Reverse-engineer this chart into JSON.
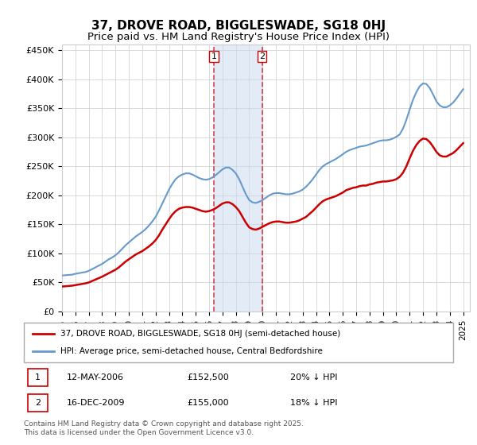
{
  "title": "37, DROVE ROAD, BIGGLESWADE, SG18 0HJ",
  "subtitle": "Price paid vs. HM Land Registry's House Price Index (HPI)",
  "title_fontsize": 11,
  "subtitle_fontsize": 9.5,
  "ylabel_ticks": [
    "£0",
    "£50K",
    "£100K",
    "£150K",
    "£200K",
    "£250K",
    "£300K",
    "£350K",
    "£400K",
    "£450K"
  ],
  "ytick_values": [
    0,
    50000,
    100000,
    150000,
    200000,
    250000,
    300000,
    350000,
    400000,
    450000
  ],
  "ylim": [
    0,
    460000
  ],
  "xlim_start": 1995.0,
  "xlim_end": 2025.5,
  "hpi_color": "#6699cc",
  "price_color": "#cc0000",
  "shade_color": "#c8d8f0",
  "shade_alpha": 0.5,
  "vline_color": "#cc0000",
  "vline_style": "--",
  "vline_alpha": 0.7,
  "transaction1_date": 2006.36,
  "transaction2_date": 2009.96,
  "transaction1_price": 152500,
  "transaction2_price": 155000,
  "legend_label_red": "37, DROVE ROAD, BIGGLESWADE, SG18 0HJ (semi-detached house)",
  "legend_label_blue": "HPI: Average price, semi-detached house, Central Bedfordshire",
  "table_rows": [
    {
      "num": "1",
      "date": "12-MAY-2006",
      "price": "£152,500",
      "pct": "20% ↓ HPI"
    },
    {
      "num": "2",
      "date": "16-DEC-2009",
      "price": "£155,000",
      "pct": "18% ↓ HPI"
    }
  ],
  "footnote": "Contains HM Land Registry data © Crown copyright and database right 2025.\nThis data is licensed under the Open Government Licence v3.0.",
  "hpi_data": {
    "years": [
      1995.0,
      1995.25,
      1995.5,
      1995.75,
      1996.0,
      1996.25,
      1996.5,
      1996.75,
      1997.0,
      1997.25,
      1997.5,
      1997.75,
      1998.0,
      1998.25,
      1998.5,
      1998.75,
      1999.0,
      1999.25,
      1999.5,
      1999.75,
      2000.0,
      2000.25,
      2000.5,
      2000.75,
      2001.0,
      2001.25,
      2001.5,
      2001.75,
      2002.0,
      2002.25,
      2002.5,
      2002.75,
      2003.0,
      2003.25,
      2003.5,
      2003.75,
      2004.0,
      2004.25,
      2004.5,
      2004.75,
      2005.0,
      2005.25,
      2005.5,
      2005.75,
      2006.0,
      2006.25,
      2006.5,
      2006.75,
      2007.0,
      2007.25,
      2007.5,
      2007.75,
      2008.0,
      2008.25,
      2008.5,
      2008.75,
      2009.0,
      2009.25,
      2009.5,
      2009.75,
      2010.0,
      2010.25,
      2010.5,
      2010.75,
      2011.0,
      2011.25,
      2011.5,
      2011.75,
      2012.0,
      2012.25,
      2012.5,
      2012.75,
      2013.0,
      2013.25,
      2013.5,
      2013.75,
      2014.0,
      2014.25,
      2014.5,
      2014.75,
      2015.0,
      2015.25,
      2015.5,
      2015.75,
      2016.0,
      2016.25,
      2016.5,
      2016.75,
      2017.0,
      2017.25,
      2017.5,
      2017.75,
      2018.0,
      2018.25,
      2018.5,
      2018.75,
      2019.0,
      2019.25,
      2019.5,
      2019.75,
      2020.0,
      2020.25,
      2020.5,
      2020.75,
      2021.0,
      2021.25,
      2021.5,
      2021.75,
      2022.0,
      2022.25,
      2022.5,
      2022.75,
      2023.0,
      2023.25,
      2023.5,
      2023.75,
      2024.0,
      2024.25,
      2024.5,
      2024.75,
      2025.0
    ],
    "values": [
      62000,
      62500,
      63000,
      63500,
      65000,
      66000,
      67000,
      68000,
      70000,
      73000,
      76000,
      79000,
      82000,
      86000,
      90000,
      93000,
      97000,
      102000,
      108000,
      114000,
      119000,
      124000,
      129000,
      133000,
      137000,
      142000,
      148000,
      155000,
      163000,
      174000,
      186000,
      198000,
      210000,
      220000,
      228000,
      233000,
      236000,
      238000,
      238000,
      236000,
      233000,
      230000,
      228000,
      227000,
      228000,
      231000,
      235000,
      240000,
      245000,
      248000,
      248000,
      244000,
      238000,
      228000,
      215000,
      202000,
      192000,
      188000,
      187000,
      189000,
      192000,
      196000,
      200000,
      203000,
      204000,
      204000,
      203000,
      202000,
      202000,
      203000,
      205000,
      207000,
      210000,
      215000,
      221000,
      228000,
      236000,
      244000,
      250000,
      254000,
      257000,
      260000,
      263000,
      267000,
      271000,
      275000,
      278000,
      280000,
      282000,
      284000,
      285000,
      286000,
      288000,
      290000,
      292000,
      294000,
      295000,
      295000,
      296000,
      298000,
      301000,
      305000,
      315000,
      330000,
      348000,
      365000,
      378000,
      388000,
      393000,
      392000,
      385000,
      374000,
      362000,
      355000,
      352000,
      352000,
      355000,
      360000,
      367000,
      375000,
      383000
    ]
  },
  "price_data": {
    "years": [
      1995.0,
      1995.25,
      1995.5,
      1995.75,
      1996.0,
      1996.25,
      1996.5,
      1996.75,
      1997.0,
      1997.25,
      1997.5,
      1997.75,
      1998.0,
      1998.25,
      1998.5,
      1998.75,
      1999.0,
      1999.25,
      1999.5,
      1999.75,
      2000.0,
      2000.25,
      2000.5,
      2000.75,
      2001.0,
      2001.25,
      2001.5,
      2001.75,
      2002.0,
      2002.25,
      2002.5,
      2002.75,
      2003.0,
      2003.25,
      2003.5,
      2003.75,
      2004.0,
      2004.25,
      2004.5,
      2004.75,
      2005.0,
      2005.25,
      2005.5,
      2005.75,
      2006.0,
      2006.25,
      2006.5,
      2006.75,
      2007.0,
      2007.25,
      2007.5,
      2007.75,
      2008.0,
      2008.25,
      2008.5,
      2008.75,
      2009.0,
      2009.25,
      2009.5,
      2009.75,
      2010.0,
      2010.25,
      2010.5,
      2010.75,
      2011.0,
      2011.25,
      2011.5,
      2011.75,
      2012.0,
      2012.25,
      2012.5,
      2012.75,
      2013.0,
      2013.25,
      2013.5,
      2013.75,
      2014.0,
      2014.25,
      2014.5,
      2014.75,
      2015.0,
      2015.25,
      2015.5,
      2015.75,
      2016.0,
      2016.25,
      2016.5,
      2016.75,
      2017.0,
      2017.25,
      2017.5,
      2017.75,
      2018.0,
      2018.25,
      2018.5,
      2018.75,
      2019.0,
      2019.25,
      2019.5,
      2019.75,
      2020.0,
      2020.25,
      2020.5,
      2020.75,
      2021.0,
      2021.25,
      2021.5,
      2021.75,
      2022.0,
      2022.25,
      2022.5,
      2022.75,
      2023.0,
      2023.25,
      2023.5,
      2023.75,
      2024.0,
      2024.25,
      2024.5,
      2024.75,
      2025.0
    ],
    "values": [
      43000,
      43500,
      44000,
      44500,
      45500,
      46500,
      47500,
      48500,
      50000,
      52500,
      55000,
      57500,
      60000,
      63000,
      66000,
      69000,
      72000,
      76000,
      81000,
      86000,
      90000,
      94000,
      98000,
      101000,
      104000,
      108000,
      112000,
      117000,
      123000,
      131000,
      141000,
      150000,
      159000,
      167000,
      173000,
      177000,
      179000,
      180000,
      180000,
      179000,
      177000,
      175000,
      173000,
      172000,
      173000,
      175000,
      178000,
      182000,
      186000,
      188000,
      188000,
      185000,
      180000,
      173000,
      163000,
      153000,
      145000,
      142000,
      141000,
      143000,
      146000,
      149000,
      152000,
      154000,
      155000,
      155000,
      154000,
      153000,
      153000,
      154000,
      155000,
      157000,
      160000,
      163000,
      168000,
      173000,
      179000,
      185000,
      190000,
      193000,
      195000,
      197000,
      199000,
      202000,
      205000,
      209000,
      211000,
      213000,
      214000,
      216000,
      217000,
      217000,
      219000,
      220000,
      222000,
      223000,
      224000,
      224000,
      225000,
      226000,
      228000,
      232000,
      239000,
      250000,
      264000,
      277000,
      287000,
      294000,
      298000,
      297000,
      292000,
      284000,
      275000,
      269000,
      267000,
      267000,
      270000,
      273000,
      278000,
      284000,
      290000
    ]
  }
}
